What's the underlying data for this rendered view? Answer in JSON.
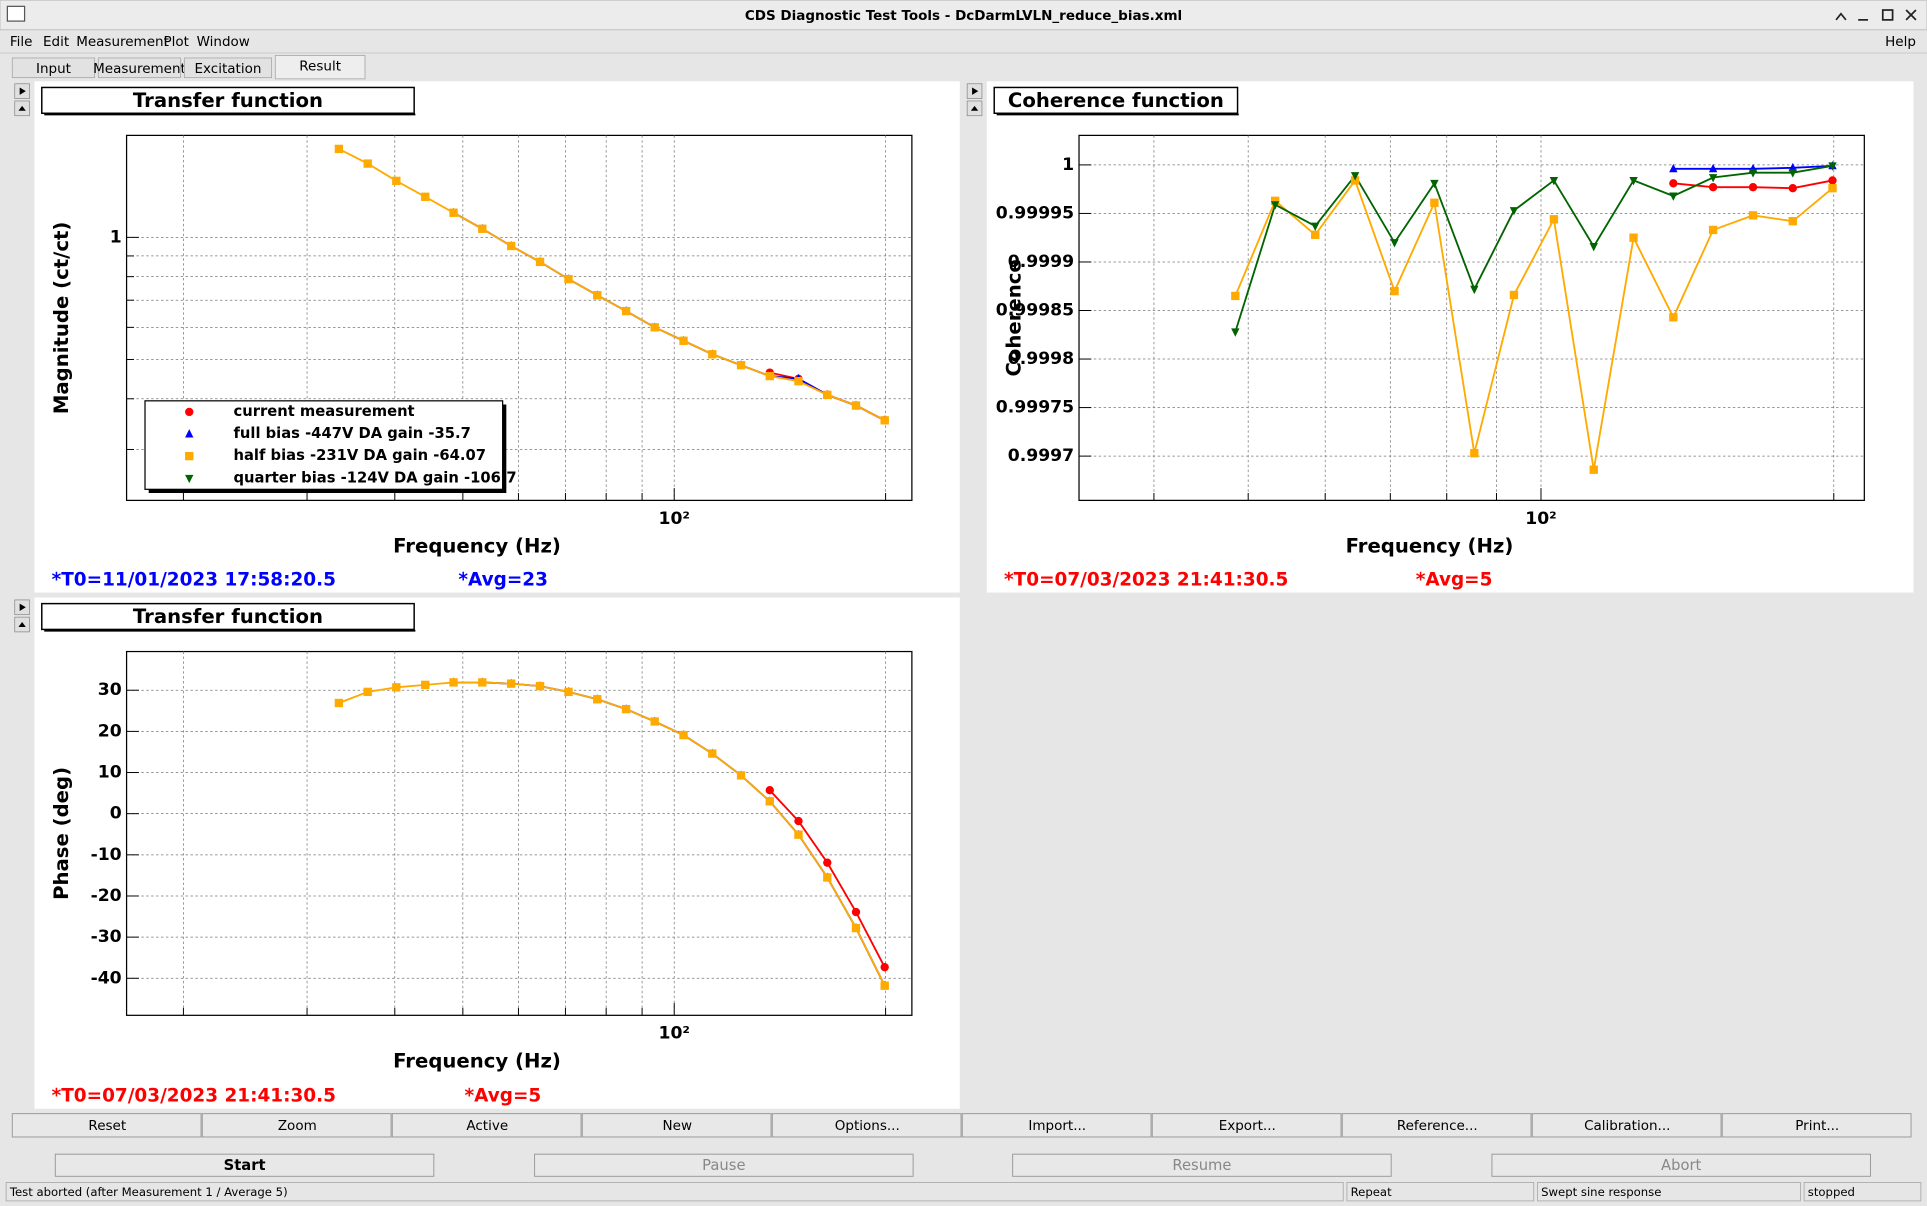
{
  "window": {
    "title": "CDS Diagnostic Test Tools - DcDarmLVLN_reduce_bias.xml"
  },
  "menu": [
    "File",
    "Edit",
    "Measurement",
    "Plot",
    "Window"
  ],
  "help": "Help",
  "tabs": [
    "Input",
    "Measurement",
    "Excitation",
    "Result"
  ],
  "chart_data": [
    {
      "type": "line",
      "title": "Transfer function",
      "xlabel": "Frequency (Hz)",
      "ylabel": "Magnitude (ct/ct)",
      "xscale": "log",
      "yscale": "log",
      "grid": true,
      "legend": true,
      "xlim": [
        16.6,
        218
      ],
      "ylim": [
        0.2247,
        1.784
      ],
      "xticks": [
        {
          "value": 100,
          "label": "10²"
        }
      ],
      "xminor": [
        20,
        30,
        40,
        50,
        60,
        70,
        80,
        90,
        200
      ],
      "yticks": [
        1
      ],
      "yminor": [
        0.3,
        0.4,
        0.5,
        0.6,
        0.7,
        0.8,
        0.9
      ],
      "x": [
        33.3,
        36.6,
        40.2,
        44.2,
        48.5,
        53.3,
        58.6,
        64.4,
        70.7,
        77.7,
        85.4,
        93.8,
        103.1,
        113.3,
        124.5,
        136.8,
        150.3,
        165.2,
        181.5,
        199.4
      ],
      "series": [
        {
          "name": "current measurement",
          "color": "#ff0000",
          "marker": "circle",
          "values": [
            null,
            null,
            null,
            null,
            null,
            null,
            null,
            null,
            null,
            null,
            null,
            null,
            null,
            null,
            null,
            0.464,
            0.448,
            0.409,
            0.385,
            0.354
          ]
        },
        {
          "name": "full bias -447V DA gain -35.7",
          "color": "#0000ff",
          "marker": "triangle-up",
          "values": [
            null,
            null,
            null,
            null,
            1.15,
            1.05,
            0.952,
            0.87,
            0.789,
            0.72,
            0.658,
            0.6,
            0.556,
            0.515,
            0.484,
            0.455,
            0.448,
            0.409,
            0.385,
            0.354
          ]
        },
        {
          "name": "half bias -231V DA gain -64.07",
          "color": "#ffaa00",
          "marker": "square",
          "values": [
            1.652,
            1.52,
            1.378,
            1.259,
            1.15,
            1.05,
            0.952,
            0.87,
            0.789,
            0.72,
            0.658,
            0.6,
            0.556,
            0.515,
            0.484,
            0.455,
            0.442,
            0.409,
            0.385,
            0.354
          ]
        },
        {
          "name": "quarter bias -124V DA gain -106.7",
          "color": "#006400",
          "marker": "triangle-down",
          "values": [
            null,
            null,
            null,
            null,
            null,
            null,
            null,
            null,
            null,
            null,
            null,
            null,
            null,
            null,
            null,
            null,
            null,
            null,
            null,
            null
          ]
        }
      ],
      "info": [
        "*T0=11/01/2023 17:58:20.5",
        "*Avg=23"
      ],
      "info_color": "#0000ff"
    },
    {
      "type": "line",
      "title": "Coherence function",
      "xlabel": "Frequency (Hz)",
      "ylabel": "Coherence",
      "xscale": "log",
      "yscale": "linear",
      "grid": true,
      "legend": false,
      "xlim": [
        33.5,
        215
      ],
      "ylim": [
        0.9996544,
        1.0000304
      ],
      "xticks": [
        {
          "value": 100,
          "label": "10²"
        }
      ],
      "xminor": [
        40,
        50,
        60,
        70,
        80,
        90,
        200
      ],
      "yticks": [
        0.9997,
        0.99975,
        0.9998,
        0.99985,
        0.9999,
        0.99995,
        1
      ],
      "yminor": [],
      "x": [
        48.5,
        53.3,
        58.6,
        64.4,
        70.7,
        77.7,
        85.4,
        93.8,
        103.1,
        113.3,
        124.5,
        136.8,
        150.3,
        165.2,
        181.5,
        199.4
      ],
      "series": [
        {
          "name": "current measurement",
          "color": "#ff0000",
          "marker": "circle",
          "values": [
            null,
            null,
            null,
            null,
            null,
            null,
            null,
            null,
            null,
            null,
            null,
            0.999981,
            0.999977,
            0.999977,
            0.999976,
            0.999984
          ]
        },
        {
          "name": "full bias -447V DA gain -35.7",
          "color": "#0000ff",
          "marker": "triangle-up",
          "values": [
            null,
            null,
            null,
            null,
            null,
            null,
            null,
            null,
            null,
            null,
            null,
            0.999996,
            0.999996,
            0.999996,
            0.999997,
            0.999999
          ]
        },
        {
          "name": "half bias -231V DA gain -64.07",
          "color": "#ffaa00",
          "marker": "square",
          "values": [
            0.999865,
            0.999963,
            0.999928,
            0.999984,
            0.99987,
            0.999961,
            0.999703,
            0.999866,
            0.999944,
            0.999686,
            0.999925,
            0.999843,
            0.999933,
            0.999948,
            0.999942,
            0.999976
          ]
        },
        {
          "name": "quarter bias -124V DA gain -106.7",
          "color": "#006400",
          "marker": "triangle-down",
          "values": [
            0.999828,
            0.999959,
            0.999937,
            0.999989,
            0.99992,
            0.999981,
            0.999872,
            0.999953,
            0.999984,
            0.999916,
            0.999984,
            0.999968,
            0.999987,
            0.999992,
            0.999992,
            0.999999
          ]
        }
      ],
      "info": [
        "*T0=07/03/2023 21:41:30.5",
        "*Avg=5"
      ],
      "info_color": "#ff0000"
    },
    {
      "type": "line",
      "title": "Transfer function",
      "xlabel": "Frequency (Hz)",
      "ylabel": "Phase (deg)",
      "xscale": "log",
      "yscale": "linear",
      "grid": true,
      "legend": false,
      "xlim": [
        16.6,
        218
      ],
      "ylim": [
        -49,
        39.4
      ],
      "xticks": [
        {
          "value": 100,
          "label": "10²"
        }
      ],
      "xminor": [
        20,
        30,
        40,
        50,
        60,
        70,
        80,
        90,
        200
      ],
      "yticks": [
        -40,
        -30,
        -20,
        -10,
        0,
        10,
        20,
        30
      ],
      "yminor": [],
      "x": [
        33.3,
        36.6,
        40.2,
        44.2,
        48.5,
        53.3,
        58.6,
        64.4,
        70.7,
        77.7,
        85.4,
        93.8,
        103.1,
        113.3,
        124.5,
        136.8,
        150.3,
        165.2,
        181.5,
        199.4
      ],
      "series": [
        {
          "name": "current measurement",
          "color": "#ff0000",
          "marker": "circle",
          "values": [
            null,
            null,
            null,
            null,
            null,
            null,
            null,
            null,
            null,
            null,
            null,
            null,
            null,
            null,
            null,
            5.7,
            -1.8,
            -11.9,
            -23.9,
            -37.3
          ]
        },
        {
          "name": "full bias -447V DA gain -35.7",
          "color": "#0000ff",
          "marker": "triangle-up",
          "values": [
            null,
            null,
            null,
            null,
            31.9,
            31.9,
            31.6,
            31.0,
            29.6,
            27.8,
            25.4,
            22.4,
            19.1,
            14.6,
            9.3,
            3.0,
            -5.1,
            -15.5,
            -27.8,
            -41.8
          ]
        },
        {
          "name": "half bias -231V DA gain -64.07",
          "color": "#ffaa00",
          "marker": "square",
          "values": [
            26.9,
            29.6,
            30.7,
            31.3,
            31.9,
            31.9,
            31.6,
            31.0,
            29.6,
            27.8,
            25.4,
            22.4,
            19.1,
            14.6,
            9.3,
            3.0,
            -5.1,
            -15.5,
            -27.8,
            -41.8
          ]
        }
      ],
      "info": [
        "*T0=07/03/2023 21:41:30.5",
        "*Avg=5"
      ],
      "info_color": "#ff0000"
    }
  ],
  "buttons": [
    "Reset",
    "Zoom",
    "Active",
    "New",
    "Options...",
    "Import...",
    "Export...",
    "Reference...",
    "Calibration...",
    "Print..."
  ],
  "run_buttons": [
    "Start",
    "Pause",
    "Resume",
    "Abort"
  ],
  "status": [
    "Test aborted (after Measurement 1 / Average 5)",
    "Repeat",
    "Swept sine response",
    "stopped"
  ]
}
